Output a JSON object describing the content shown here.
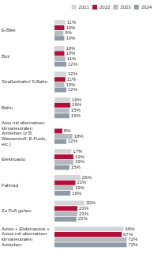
{
  "chart_data": {
    "type": "bar",
    "orientation": "horizontal",
    "categories": [
      "E-Bike",
      "Bus",
      "Straßenbahn/ S-Bahn",
      "Bahn",
      "Auto mit alternativen klimaneutralen Antrieben (z.B. Wasserstoff, E-Fuels, etc.)",
      "Elektroauto",
      "Fahrrad",
      "Zu Fuß gehen",
      "Autos + Elektroautos + Autos mit alternativen klimaneutralen Antrieben"
    ],
    "series": [
      {
        "name": "2021",
        "color": "#d3d6d9",
        "values": [
          11,
          10,
          12,
          16,
          null,
          17,
          26,
          30,
          69
        ],
        "value_labels": [
          "11%",
          "10%",
          "12%",
          "16%",
          null,
          "17%",
          "26%",
          "30%",
          "69%"
        ]
      },
      {
        "name": "2022",
        "color": "#b0103a",
        "values": [
          10,
          10,
          11,
          16,
          8,
          19,
          21,
          23,
          67
        ],
        "value_labels": [
          "10%",
          "10%",
          "11%",
          "16%",
          "8%",
          "19%",
          "21%",
          "23%",
          "67%"
        ]
      },
      {
        "name": "2023",
        "color": "#b6babe",
        "values": [
          9,
          11,
          10,
          15,
          18,
          19,
          19,
          23,
          72
        ],
        "value_labels": [
          "9%",
          "11%",
          "10%",
          "15%",
          "18%",
          "19%",
          "19%",
          "23%",
          "72%"
        ]
      },
      {
        "name": "2024",
        "color": "#8f9ba7",
        "values": [
          10,
          12,
          12,
          15,
          12,
          15,
          16,
          22,
          72
        ],
        "value_labels": [
          "10%",
          "12%",
          "12%",
          "15%",
          "12%",
          "15%",
          "16%",
          "22%",
          "72%"
        ]
      }
    ],
    "xlim": [
      0,
      100
    ],
    "legend": "top",
    "data_labels": true,
    "tick_labels": "y",
    "grid": false
  }
}
